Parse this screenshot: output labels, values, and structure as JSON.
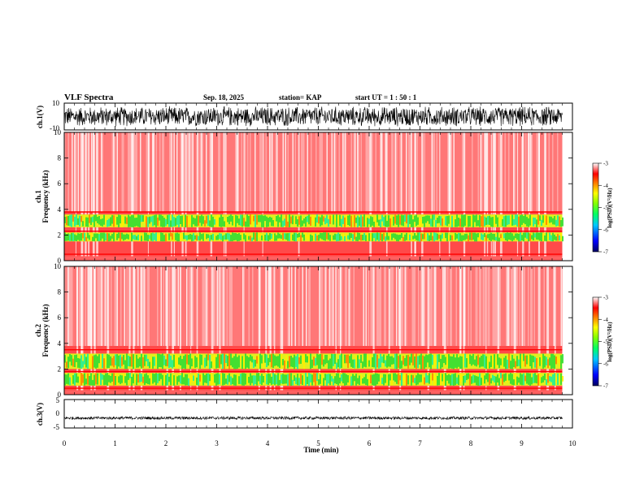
{
  "header": {
    "title": "VLF Spectra",
    "date": "Sep. 18, 2025",
    "station": "station= KAP",
    "start_ut": "start UT =   1 : 50 : 1"
  },
  "colors": {
    "trace": "#000000",
    "spectro_low": "#ffffff",
    "spectro_mid": "#ff3030",
    "spectro_high": "#22dd22",
    "colorbar": [
      "#000080",
      "#0000ff",
      "#00bfff",
      "#00ff80",
      "#80ff00",
      "#ffff00",
      "#ff8000",
      "#ff0000",
      "#ffffff"
    ]
  },
  "chart_data": [
    {
      "type": "line",
      "name": "ch1-waveform",
      "ylabel": "ch.1(V)",
      "ylim": [
        -10,
        10
      ],
      "yticks": [
        "10",
        "-10"
      ],
      "xlim": [
        0,
        10
      ],
      "description_values": {
        "amplitude_typical": [
          -8,
          8
        ],
        "data_end_min": 9.8
      }
    },
    {
      "type": "heatmap",
      "name": "ch1-spectrogram",
      "ylabel": "ch.1 Frequency (kHz)",
      "ylim": [
        0,
        10
      ],
      "yticks": [
        "0",
        "2",
        "4",
        "6",
        "8",
        "10"
      ],
      "xlim": [
        0,
        10
      ],
      "data_end_min": 9.8,
      "bands_khz": [
        [
          1.5,
          2.2
        ],
        [
          2.6,
          3.6
        ]
      ],
      "band_lines_khz": [
        0.5,
        2.3,
        3.8
      ],
      "colorbar": {
        "label": "log(PSD)(V²/Hz)",
        "ticks": [
          "-3",
          "-4",
          "-5",
          "-6",
          "-7"
        ],
        "range": [
          -7,
          -3
        ]
      }
    },
    {
      "type": "heatmap",
      "name": "ch2-spectrogram",
      "ylabel": "ch.2 Frequency (kHz)",
      "ylim": [
        0,
        10
      ],
      "yticks": [
        "0",
        "2",
        "4",
        "6",
        "8",
        "10"
      ],
      "xlim": [
        0,
        10
      ],
      "data_end_min": 9.8,
      "bands_khz": [
        [
          0.7,
          1.7
        ],
        [
          2.0,
          3.2
        ]
      ],
      "band_lines_khz": [
        0.5,
        1.8,
        3.5
      ],
      "colorbar": {
        "label": "log(PSD)(V²/Hz)",
        "ticks": [
          "-3",
          "-4",
          "-5",
          "-6",
          "-7"
        ],
        "range": [
          -7,
          -3
        ]
      }
    },
    {
      "type": "line",
      "name": "ch3-waveform",
      "ylabel": "ch.3(V)",
      "ylim": [
        -5,
        5
      ],
      "yticks": [
        "5",
        "0",
        "-5"
      ],
      "xlim": [
        0,
        10
      ],
      "description_values": {
        "level": -1.5,
        "amplitude": 0.5,
        "data_end_min": 9.8
      }
    }
  ],
  "xaxis": {
    "label": "Time (min)",
    "ticks": [
      "0",
      "1",
      "2",
      "3",
      "4",
      "5",
      "6",
      "7",
      "8",
      "9",
      "10"
    ]
  }
}
